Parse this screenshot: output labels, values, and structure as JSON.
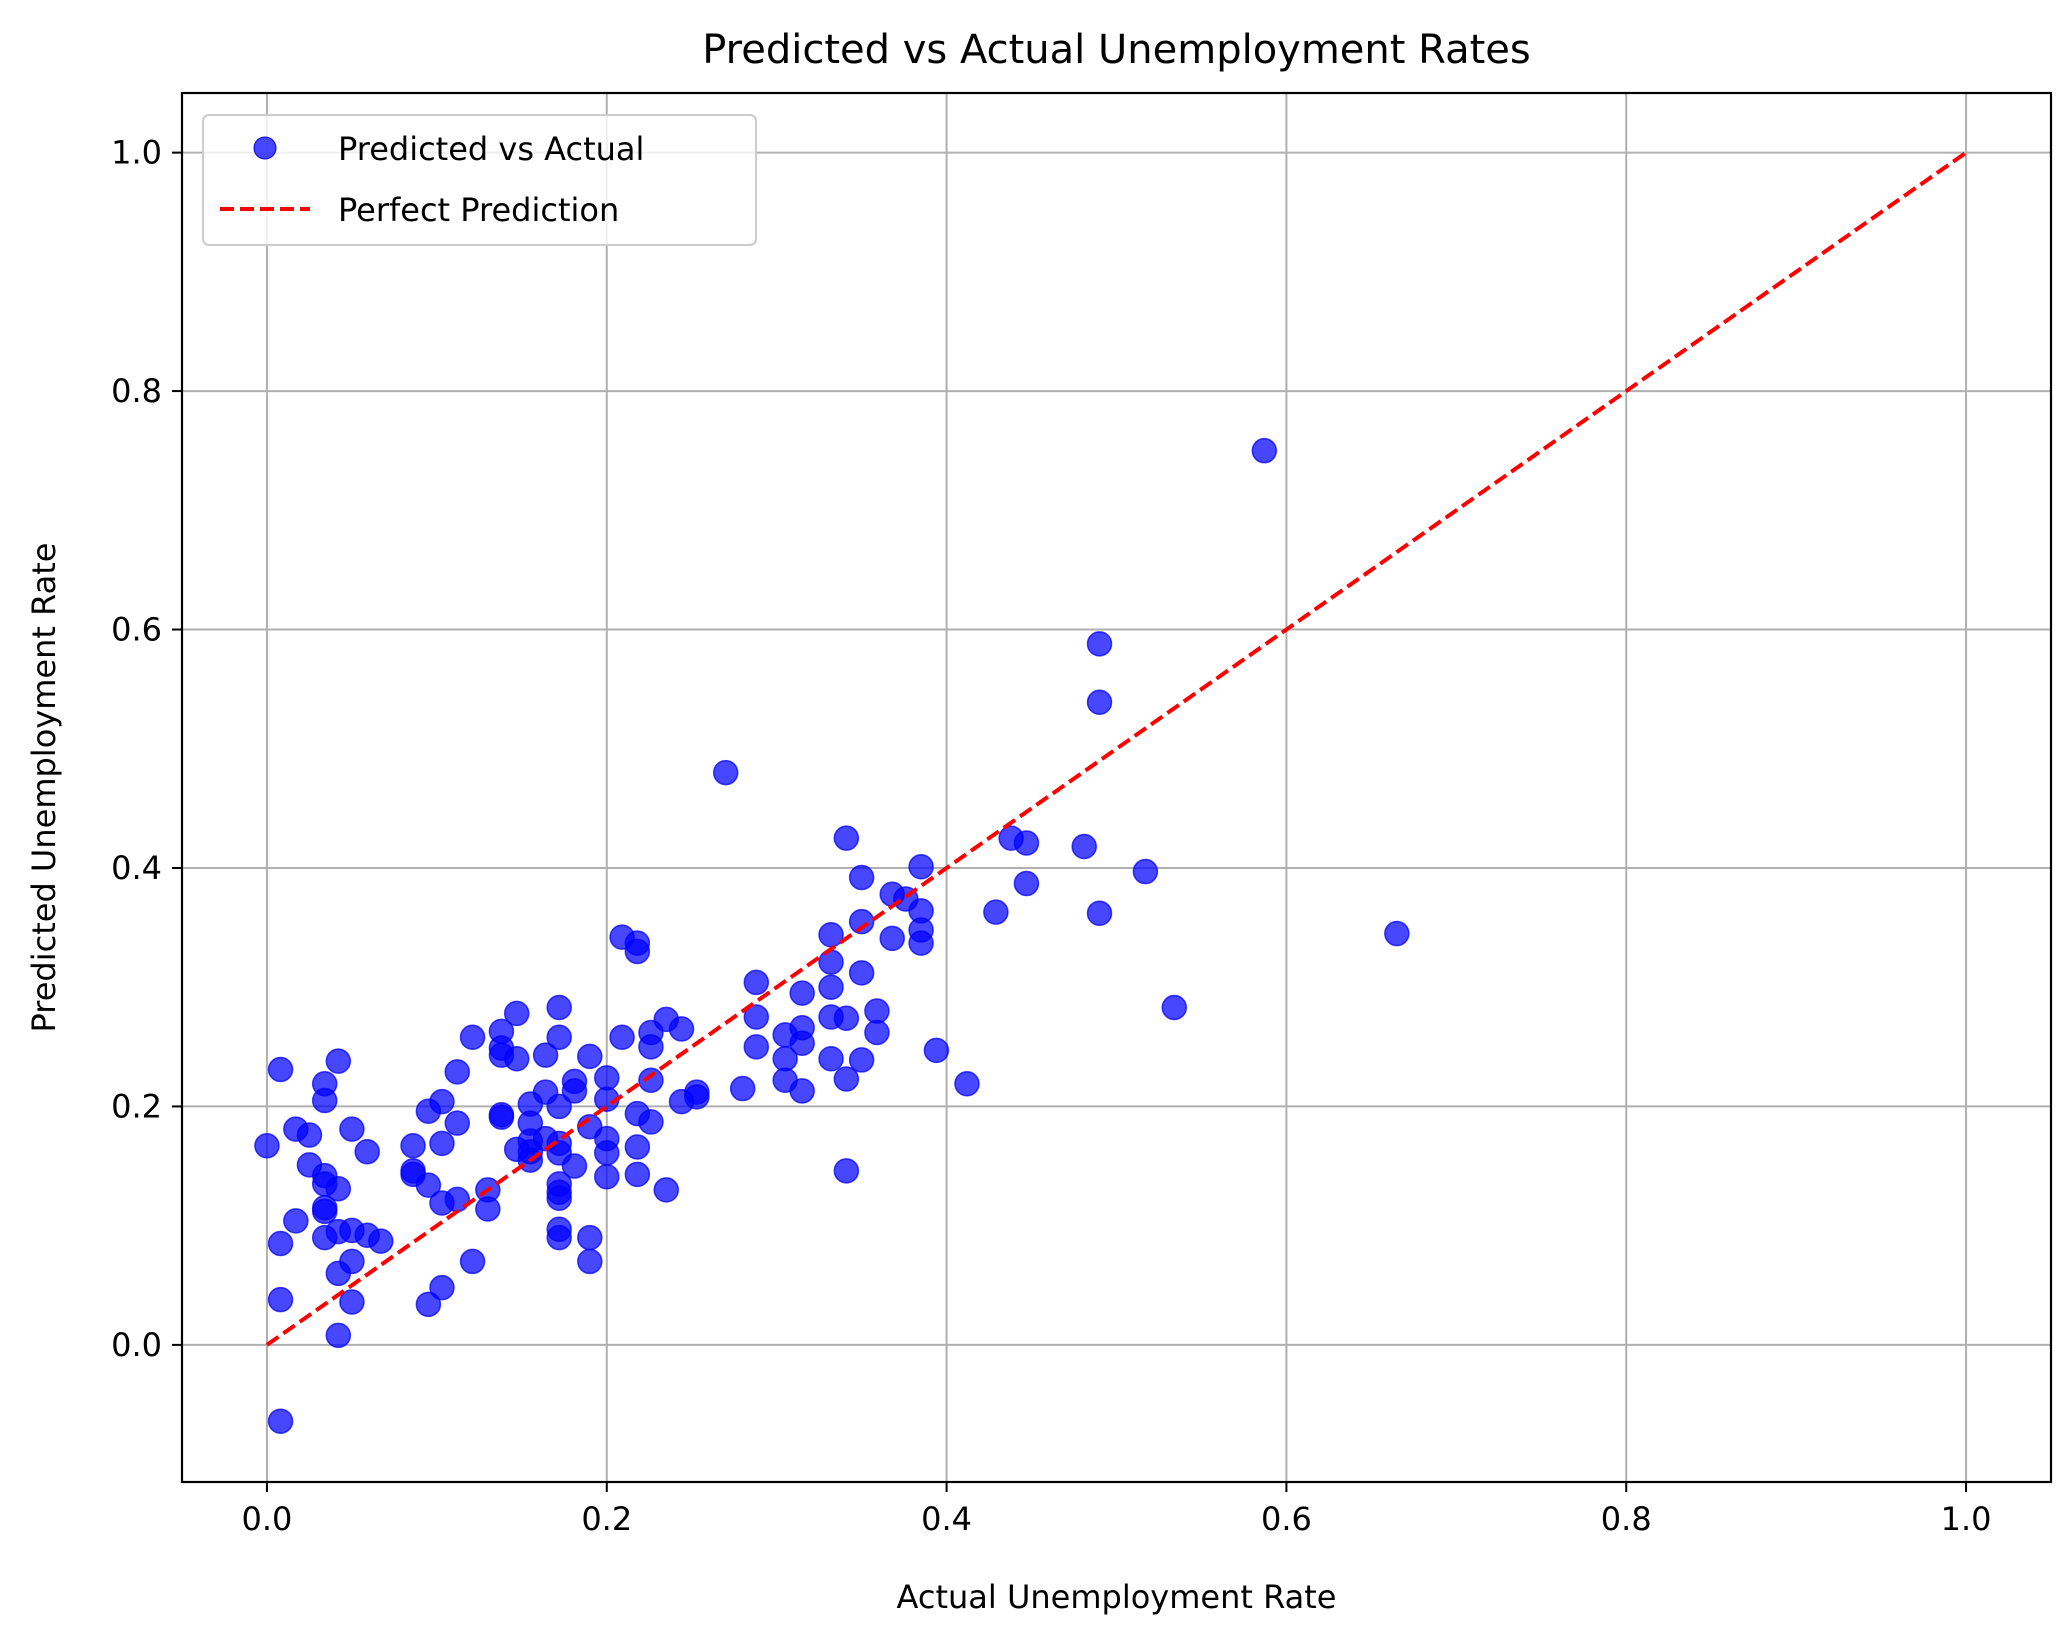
{
  "chart_data": {
    "type": "scatter",
    "title": "Predicted vs Actual Unemployment Rates",
    "xlabel": "Actual Unemployment Rate",
    "ylabel": "Predicted Unemployment Rate",
    "xlim": [
      -0.05,
      1.05
    ],
    "ylim": [
      -0.115,
      1.05
    ],
    "grid": true,
    "legend_position": "top-left",
    "x_ticks": [
      "0.0",
      "0.2",
      "0.4",
      "0.6",
      "0.8",
      "1.0"
    ],
    "y_ticks": [
      "0.0",
      "0.2",
      "0.4",
      "0.6",
      "0.8",
      "1.0"
    ],
    "series": [
      {
        "name": "Predicted vs Actual",
        "color": "#0000ff",
        "kind": "scatter",
        "points": [
          [
            0.0,
            0.167
          ],
          [
            0.008,
            0.231
          ],
          [
            0.008,
            0.085
          ],
          [
            0.008,
            0.038
          ],
          [
            0.008,
            -0.064
          ],
          [
            0.017,
            0.181
          ],
          [
            0.017,
            0.104
          ],
          [
            0.025,
            0.176
          ],
          [
            0.025,
            0.151
          ],
          [
            0.034,
            0.219
          ],
          [
            0.034,
            0.205
          ],
          [
            0.034,
            0.142
          ],
          [
            0.034,
            0.135
          ],
          [
            0.034,
            0.115
          ],
          [
            0.034,
            0.112
          ],
          [
            0.034,
            0.09
          ],
          [
            0.042,
            0.238
          ],
          [
            0.042,
            0.131
          ],
          [
            0.042,
            0.095
          ],
          [
            0.042,
            0.06
          ],
          [
            0.042,
            0.008
          ],
          [
            0.05,
            0.181
          ],
          [
            0.05,
            0.096
          ],
          [
            0.05,
            0.07
          ],
          [
            0.05,
            0.036
          ],
          [
            0.059,
            0.162
          ],
          [
            0.059,
            0.092
          ],
          [
            0.067,
            0.087
          ],
          [
            0.086,
            0.167
          ],
          [
            0.086,
            0.146
          ],
          [
            0.086,
            0.143
          ],
          [
            0.095,
            0.196
          ],
          [
            0.095,
            0.134
          ],
          [
            0.095,
            0.034
          ],
          [
            0.103,
            0.204
          ],
          [
            0.103,
            0.169
          ],
          [
            0.103,
            0.119
          ],
          [
            0.103,
            0.048
          ],
          [
            0.112,
            0.229
          ],
          [
            0.112,
            0.186
          ],
          [
            0.112,
            0.122
          ],
          [
            0.121,
            0.258
          ],
          [
            0.121,
            0.07
          ],
          [
            0.13,
            0.13
          ],
          [
            0.13,
            0.114
          ],
          [
            0.138,
            0.263
          ],
          [
            0.138,
            0.249
          ],
          [
            0.138,
            0.243
          ],
          [
            0.138,
            0.193
          ],
          [
            0.138,
            0.191
          ],
          [
            0.147,
            0.278
          ],
          [
            0.147,
            0.24
          ],
          [
            0.147,
            0.164
          ],
          [
            0.155,
            0.202
          ],
          [
            0.155,
            0.186
          ],
          [
            0.155,
            0.171
          ],
          [
            0.155,
            0.162
          ],
          [
            0.155,
            0.155
          ],
          [
            0.164,
            0.243
          ],
          [
            0.164,
            0.212
          ],
          [
            0.164,
            0.173
          ],
          [
            0.172,
            0.283
          ],
          [
            0.172,
            0.258
          ],
          [
            0.172,
            0.2
          ],
          [
            0.172,
            0.169
          ],
          [
            0.172,
            0.161
          ],
          [
            0.172,
            0.135
          ],
          [
            0.172,
            0.128
          ],
          [
            0.172,
            0.123
          ],
          [
            0.172,
            0.097
          ],
          [
            0.172,
            0.09
          ],
          [
            0.181,
            0.221
          ],
          [
            0.181,
            0.213
          ],
          [
            0.181,
            0.15
          ],
          [
            0.19,
            0.242
          ],
          [
            0.19,
            0.183
          ],
          [
            0.19,
            0.09
          ],
          [
            0.19,
            0.07
          ],
          [
            0.2,
            0.224
          ],
          [
            0.2,
            0.206
          ],
          [
            0.2,
            0.173
          ],
          [
            0.2,
            0.161
          ],
          [
            0.2,
            0.141
          ],
          [
            0.209,
            0.342
          ],
          [
            0.209,
            0.258
          ],
          [
            0.218,
            0.337
          ],
          [
            0.218,
            0.33
          ],
          [
            0.218,
            0.194
          ],
          [
            0.218,
            0.166
          ],
          [
            0.218,
            0.143
          ],
          [
            0.226,
            0.262
          ],
          [
            0.226,
            0.25
          ],
          [
            0.226,
            0.222
          ],
          [
            0.226,
            0.187
          ],
          [
            0.235,
            0.273
          ],
          [
            0.235,
            0.13
          ],
          [
            0.244,
            0.265
          ],
          [
            0.244,
            0.204
          ],
          [
            0.253,
            0.212
          ],
          [
            0.253,
            0.208
          ],
          [
            0.27,
            0.48
          ],
          [
            0.28,
            0.215
          ],
          [
            0.288,
            0.304
          ],
          [
            0.288,
            0.275
          ],
          [
            0.288,
            0.25
          ],
          [
            0.305,
            0.26
          ],
          [
            0.305,
            0.24
          ],
          [
            0.305,
            0.222
          ],
          [
            0.315,
            0.295
          ],
          [
            0.315,
            0.266
          ],
          [
            0.315,
            0.253
          ],
          [
            0.315,
            0.213
          ],
          [
            0.332,
            0.344
          ],
          [
            0.332,
            0.321
          ],
          [
            0.332,
            0.3
          ],
          [
            0.332,
            0.275
          ],
          [
            0.332,
            0.24
          ],
          [
            0.341,
            0.425
          ],
          [
            0.341,
            0.274
          ],
          [
            0.341,
            0.223
          ],
          [
            0.341,
            0.146
          ],
          [
            0.35,
            0.392
          ],
          [
            0.35,
            0.355
          ],
          [
            0.35,
            0.312
          ],
          [
            0.35,
            0.239
          ],
          [
            0.359,
            0.28
          ],
          [
            0.359,
            0.262
          ],
          [
            0.368,
            0.378
          ],
          [
            0.368,
            0.341
          ],
          [
            0.376,
            0.374
          ],
          [
            0.385,
            0.401
          ],
          [
            0.385,
            0.364
          ],
          [
            0.385,
            0.348
          ],
          [
            0.385,
            0.337
          ],
          [
            0.394,
            0.247
          ],
          [
            0.412,
            0.219
          ],
          [
            0.429,
            0.363
          ],
          [
            0.438,
            0.425
          ],
          [
            0.447,
            0.421
          ],
          [
            0.447,
            0.387
          ],
          [
            0.481,
            0.418
          ],
          [
            0.49,
            0.588
          ],
          [
            0.49,
            0.539
          ],
          [
            0.49,
            0.362
          ],
          [
            0.517,
            0.397
          ],
          [
            0.534,
            0.283
          ],
          [
            0.587,
            0.75
          ],
          [
            0.665,
            0.345
          ]
        ]
      },
      {
        "name": "Perfect Prediction",
        "color": "#ff0000",
        "kind": "line",
        "dash": "dashed",
        "points": [
          [
            0.0,
            0.0
          ],
          [
            1.0,
            1.0
          ]
        ]
      }
    ]
  }
}
